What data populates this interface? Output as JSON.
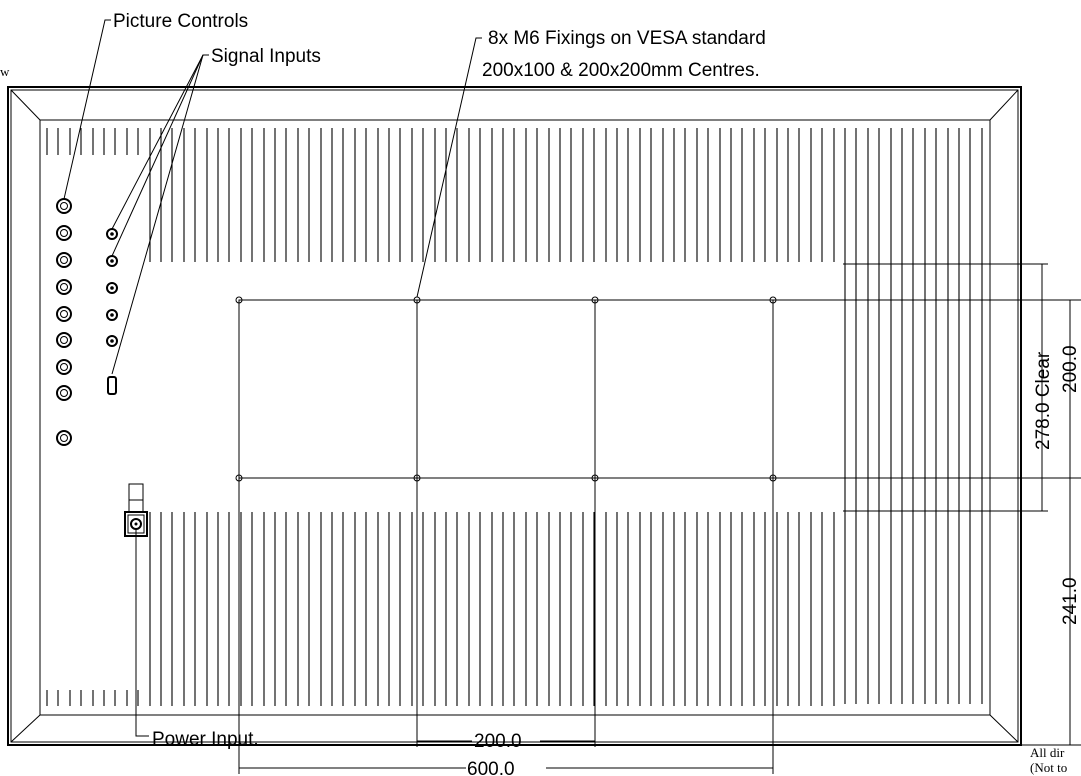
{
  "labels": {
    "picture_controls": "Picture Controls",
    "signal_inputs": "Signal Inputs",
    "vesa_line1": "8x M6 Fixings on VESA standard",
    "vesa_line2": "200x100 & 200x200mm Centres.",
    "power_input": "Power Input.",
    "view_fragment": "w",
    "note_line1": "All dir",
    "note_line2": "(Not to"
  },
  "dimensions": {
    "clear": "278.0 Clear",
    "vert_200": "200.0",
    "vert_241": "241.0",
    "horiz_200": "200.0",
    "horiz_600": "600.0"
  }
}
